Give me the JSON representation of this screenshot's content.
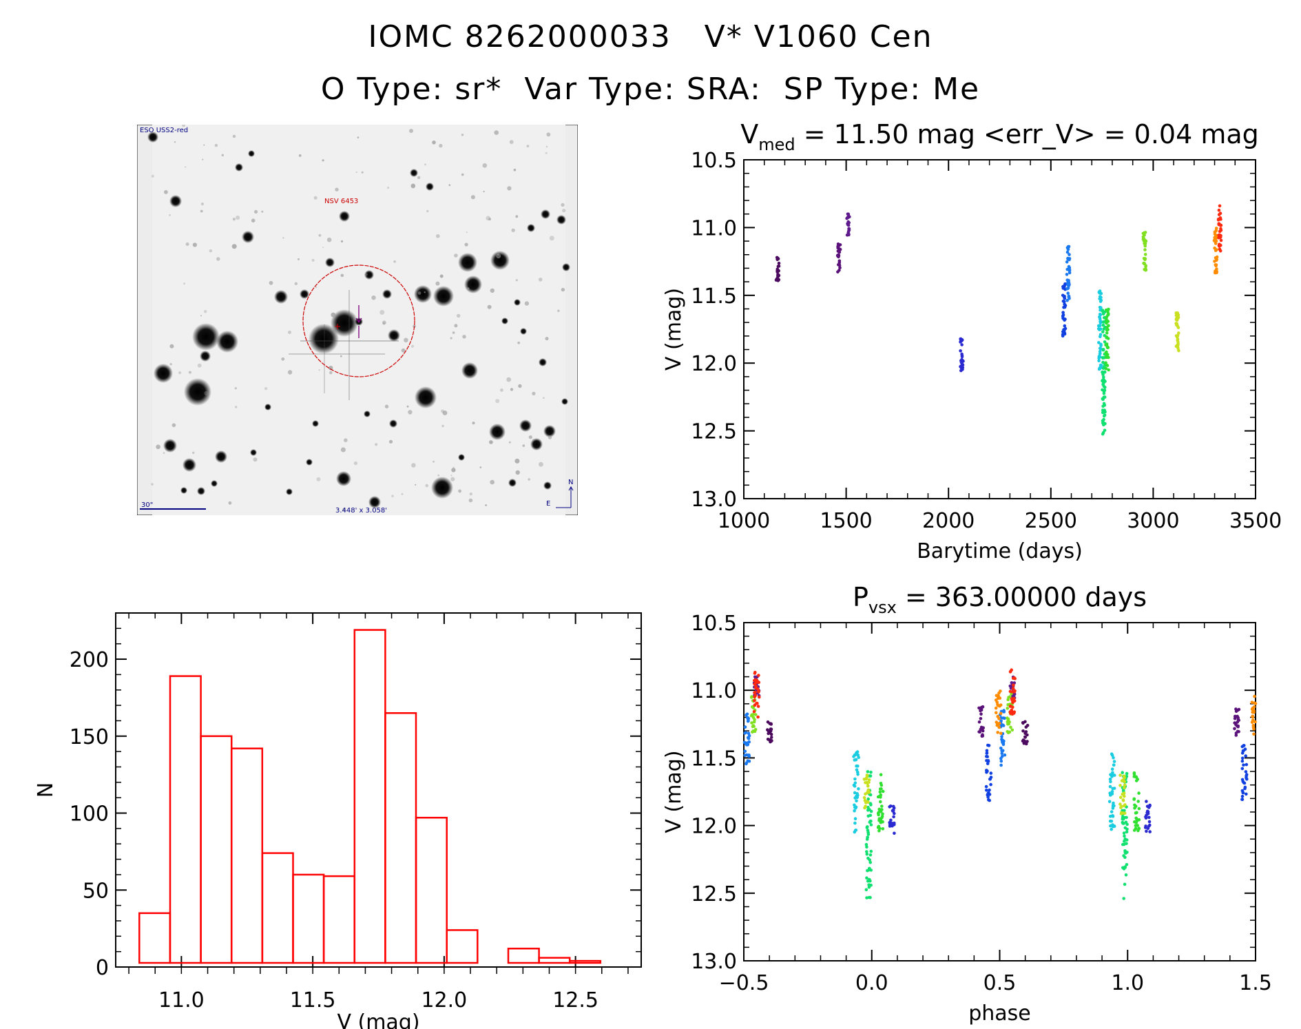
{
  "header": {
    "line1": "IOMC 8262000033   V* V1060 Cen",
    "line2": "O Type: sr*  Var Type: SRA:  SP Type: Me"
  },
  "image_panel": {
    "survey_label": "ESO USS2-red",
    "target_label": "NSV 6453",
    "scale_label": "30\"",
    "fov_label": "3.448' x 3.058'",
    "north_label": "N",
    "east_label": "E"
  },
  "colors": {
    "histogram": "#ff0000",
    "target": "#cc0000",
    "annotation": "#000080"
  },
  "chart_data": [
    {
      "id": "lightcurve",
      "type": "scatter",
      "title_main": "V",
      "title_sub": "med",
      "title_rest": " = 11.50 mag <err_V> = 0.04 mag",
      "xlabel": "Barytime (days)",
      "ylabel": "V (mag)",
      "xlim": [
        1000,
        3500
      ],
      "ylim": [
        10.5,
        13.0
      ],
      "y_inverted": true,
      "xticks": [
        "1000",
        "1500",
        "2000",
        "2500",
        "3000",
        "3500"
      ],
      "yticks": [
        "10.5",
        "11.0",
        "11.5",
        "12.0",
        "12.5",
        "13.0"
      ],
      "groups": [
        {
          "x": 1165,
          "ymin": 11.22,
          "ymax": 11.4,
          "color": "#4b0a5e"
        },
        {
          "x": 1465,
          "ymin": 11.12,
          "ymax": 11.34,
          "color": "#5a127a"
        },
        {
          "x": 1510,
          "ymin": 10.9,
          "ymax": 11.06,
          "color": "#5e1a8c"
        },
        {
          "x": 2065,
          "ymin": 11.82,
          "ymax": 12.06,
          "color": "#2a2ad0"
        },
        {
          "x": 2565,
          "ymin": 11.4,
          "ymax": 11.82,
          "color": "#1040e0"
        },
        {
          "x": 2585,
          "ymin": 11.14,
          "ymax": 11.56,
          "color": "#1a78f0"
        },
        {
          "x": 2740,
          "ymin": 11.45,
          "ymax": 12.05,
          "color": "#1acce0"
        },
        {
          "x": 2758,
          "ymin": 11.6,
          "ymax": 12.54,
          "color": "#10e070"
        },
        {
          "x": 2775,
          "ymin": 11.6,
          "ymax": 12.05,
          "color": "#30e030"
        },
        {
          "x": 2958,
          "ymin": 11.02,
          "ymax": 11.32,
          "color": "#80e020"
        },
        {
          "x": 3118,
          "ymin": 11.62,
          "ymax": 11.92,
          "color": "#c8e020"
        },
        {
          "x": 3305,
          "ymin": 11.0,
          "ymax": 11.34,
          "color": "#ff8c00"
        },
        {
          "x": 3325,
          "ymin": 10.84,
          "ymax": 11.2,
          "color": "#ff2a10"
        }
      ]
    },
    {
      "id": "histogram",
      "type": "bar",
      "xlabel": "V (mag)",
      "ylabel": "N",
      "xlim": [
        10.75,
        12.75
      ],
      "ylim": [
        0,
        230
      ],
      "bin_width": 0.117,
      "bin_start": 10.84,
      "values": [
        35,
        189,
        150,
        142,
        74,
        60,
        59,
        219,
        165,
        97,
        24,
        1,
        12,
        6,
        4
      ],
      "xticks": [
        "11.0",
        "11.5",
        "12.0",
        "12.5"
      ],
      "yticks": [
        "0",
        "50",
        "100",
        "150",
        "200"
      ]
    },
    {
      "id": "phased",
      "type": "scatter",
      "title_main": "P",
      "title_sub": "vsx",
      "title_rest": " = 363.00000 days",
      "xlabel": "phase",
      "ylabel": "V (mag)",
      "xlim": [
        -0.5,
        1.5
      ],
      "ylim": [
        10.5,
        13.0
      ],
      "y_inverted": true,
      "xticks": [
        "−0.5",
        "0.0",
        "0.5",
        "1.0",
        "1.5"
      ],
      "yticks": [
        "10.5",
        "11.0",
        "11.5",
        "12.0",
        "12.5",
        "13.0"
      ]
    }
  ]
}
